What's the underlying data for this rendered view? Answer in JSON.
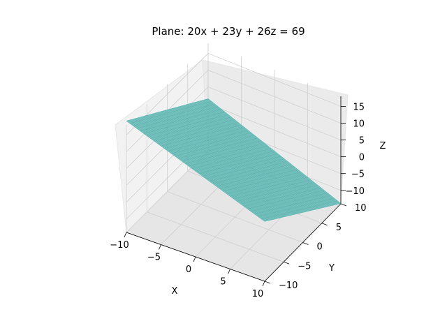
{
  "chart_data": {
    "type": "surface3d",
    "title": "Plane: 20x + 23y + 26z = 69",
    "equation": {
      "a": 20,
      "b": 23,
      "c": 26,
      "d": 69
    },
    "xlabel": "X",
    "ylabel": "Y",
    "zlabel": "Z",
    "x_range": [
      -10,
      10
    ],
    "y_range": [
      -10,
      10
    ],
    "z_range": [
      -14,
      18
    ],
    "x_ticks": [
      "−10",
      "−5",
      "0",
      "5",
      "10"
    ],
    "y_ticks": [
      "−10",
      "−5",
      "0",
      "5",
      "10"
    ],
    "z_ticks": [
      "−10",
      "−5",
      "0",
      "5",
      "10",
      "15"
    ],
    "surface_color": "#5fb8b5",
    "grid": true
  }
}
